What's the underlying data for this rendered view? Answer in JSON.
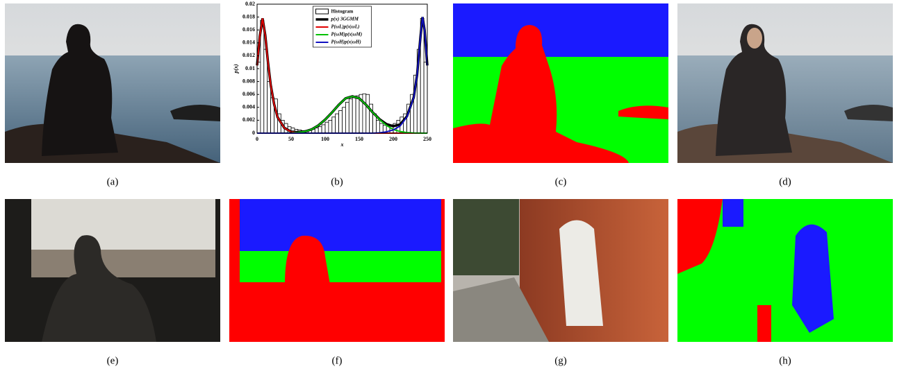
{
  "captions": [
    "(a)",
    "(b)",
    "(c)",
    "(d)",
    "(e)",
    "(f)",
    "(g)",
    "(h)"
  ],
  "chart_data": {
    "type": "histogram",
    "xlabel": "x",
    "ylabel": "p(x)",
    "legend": "upper center",
    "xlim": [
      0,
      250
    ],
    "xticks": [
      0,
      50,
      100,
      150,
      200,
      250
    ],
    "ylim": [
      0,
      0.02
    ],
    "yticks": [
      0,
      0.002,
      0.004,
      0.006,
      0.008,
      0.01,
      0.012,
      0.014,
      0.016,
      0.018,
      0.02
    ],
    "histogram": {
      "name": "Histogram",
      "color": "#ffffff",
      "bins": [
        0,
        5,
        10,
        15,
        20,
        25,
        30,
        35,
        40,
        45,
        50,
        55,
        60,
        65,
        70,
        75,
        80,
        85,
        90,
        95,
        100,
        105,
        110,
        115,
        120,
        125,
        130,
        135,
        140,
        145,
        150,
        155,
        160,
        165,
        170,
        175,
        180,
        185,
        190,
        195,
        200,
        205,
        210,
        215,
        220,
        225,
        230,
        235,
        240,
        245,
        250
      ],
      "counts": [
        0.011,
        0.0175,
        0.013,
        0.008,
        0.0055,
        0.0053,
        0.003,
        0.002,
        0.0015,
        0.001,
        0.0008,
        0.0006,
        0.0005,
        0.0004,
        0.0004,
        0.0005,
        0.0006,
        0.0008,
        0.001,
        0.0013,
        0.0017,
        0.002,
        0.0025,
        0.003,
        0.0035,
        0.004,
        0.0048,
        0.0053,
        0.0055,
        0.0058,
        0.006,
        0.0061,
        0.006,
        0.0045,
        0.003,
        0.002,
        0.0015,
        0.0012,
        0.0012,
        0.0013,
        0.0015,
        0.002,
        0.0025,
        0.003,
        0.0045,
        0.006,
        0.009,
        0.013,
        0.0178,
        0.011
      ]
    },
    "x": [
      0,
      4,
      8,
      12,
      16,
      20,
      25,
      30,
      40,
      50,
      60,
      70,
      80,
      90,
      100,
      110,
      120,
      130,
      140,
      150,
      160,
      170,
      180,
      190,
      200,
      210,
      220,
      230,
      235,
      240,
      243,
      246,
      250
    ],
    "series": [
      {
        "name": "p(x) 3GGMM",
        "color": "#000000",
        "width": 3.5,
        "values": [
          0.0105,
          0.015,
          0.0178,
          0.0152,
          0.011,
          0.0075,
          0.0045,
          0.0025,
          0.00081,
          0.00023,
          0.00015,
          0.00025,
          0.00057,
          0.0012,
          0.0021,
          0.0032,
          0.0044,
          0.0054,
          0.0057,
          0.0054,
          0.0044,
          0.0032,
          0.00215,
          0.0014,
          0.00107,
          0.00135,
          0.0026,
          0.00553,
          0.00902,
          0.01501,
          0.018,
          0.016,
          0.0105
        ]
      },
      {
        "name": "P(ωL)p(x|ωL)",
        "color": "#e00000",
        "width": 2,
        "values": [
          0.0105,
          0.015,
          0.0178,
          0.0152,
          0.011,
          0.0075,
          0.0045,
          0.0025,
          0.0008,
          0.0002,
          5e-05,
          0,
          0,
          0,
          0,
          0,
          0,
          0,
          0,
          0,
          0,
          0,
          0,
          0,
          0,
          0,
          0,
          0,
          0,
          0,
          0,
          0,
          0
        ]
      },
      {
        "name": "P(ωM)p(x|ωM)",
        "color": "#00c000",
        "width": 2,
        "values": [
          0,
          0,
          0,
          0,
          0,
          0,
          0,
          0,
          1e-05,
          3e-05,
          0.0001,
          0.00025,
          0.00057,
          0.0012,
          0.0021,
          0.0032,
          0.0044,
          0.0054,
          0.0057,
          0.0054,
          0.0044,
          0.0032,
          0.0021,
          0.0012,
          0.00057,
          0.00025,
          0.0001,
          3e-05,
          2e-05,
          1e-05,
          0,
          0,
          0
        ]
      },
      {
        "name": "P(ωH)p(x|ωH)",
        "color": "#1010c0",
        "width": 2,
        "values": [
          0,
          0,
          0,
          0,
          0,
          0,
          0,
          0,
          0,
          0,
          0,
          0,
          0,
          0,
          0,
          0,
          0,
          0,
          0,
          0,
          0,
          0,
          5e-05,
          0.0002,
          0.0005,
          0.0011,
          0.0025,
          0.0055,
          0.009,
          0.015,
          0.018,
          0.016,
          0.0105
        ]
      }
    ]
  }
}
